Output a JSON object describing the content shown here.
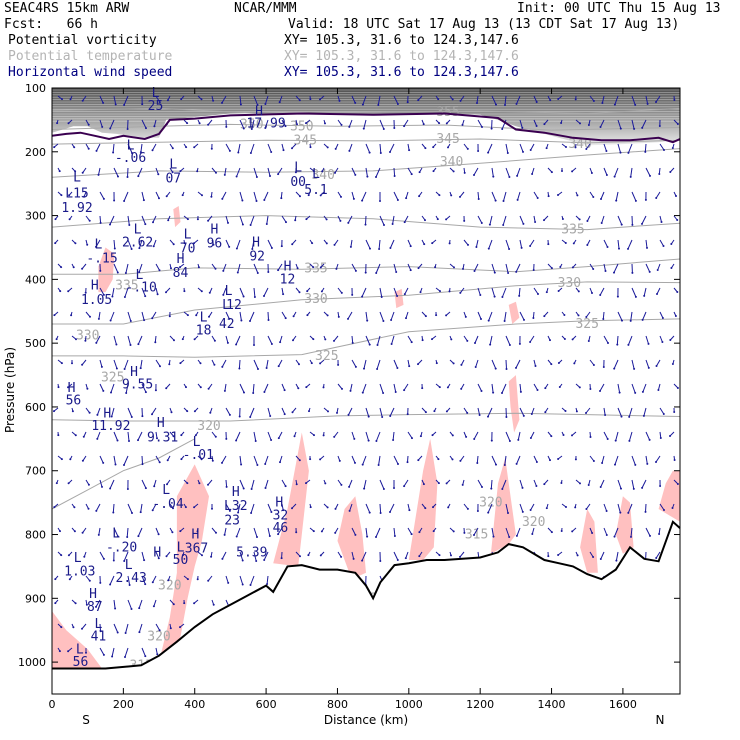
{
  "header": {
    "model": "SEAC4RS 15km ARW",
    "fcst": "Fcst:   66 h",
    "org": "NCAR/MMM",
    "init": "Init: 00 UTC Thu 15 Aug 13",
    "valid": "Valid: 18 UTC Sat 17 Aug 13 (13 CDT Sat 17 Aug 13)",
    "fields": [
      {
        "name": "Potential vorticity",
        "xy": "XY= 105.3, 31.6 to 124.3,147.6",
        "color": "#000000",
        "xycolor": "#000000"
      },
      {
        "name": "Potential temperature",
        "xy": "XY= 105.3, 31.6 to 124.3,147.6",
        "color": "#b4b4b4",
        "xycolor": "#b4b4b4"
      },
      {
        "name": "Horizontal wind speed",
        "xy": "XY= 105.3, 31.6 to 124.3,147.6",
        "color": "#000080",
        "xycolor": "#000080"
      }
    ]
  },
  "colors": {
    "pv_fill": "#ffc0c0",
    "theta": "#a8a8a8",
    "wind": "#1a1a9a",
    "pv_contour": "#3a0050",
    "terrain": "#000000"
  },
  "chart_data": {
    "type": "cross-section",
    "xlabel": "Distance (km)",
    "ylabel": "Pressure (hPa)",
    "xlim": [
      0,
      1760
    ],
    "ylim": [
      1050,
      100
    ],
    "xticks": [
      0,
      200,
      400,
      600,
      800,
      1000,
      1200,
      1400,
      1600
    ],
    "yticks": [
      100,
      200,
      300,
      400,
      500,
      600,
      700,
      800,
      900,
      1000
    ],
    "endpoints": {
      "left": "S",
      "right": "N"
    },
    "terrain": [
      [
        0,
        1010
      ],
      [
        80,
        1010
      ],
      [
        150,
        1010
      ],
      [
        250,
        1005
      ],
      [
        300,
        990
      ],
      [
        350,
        968
      ],
      [
        400,
        945
      ],
      [
        450,
        925
      ],
      [
        500,
        910
      ],
      [
        550,
        895
      ],
      [
        600,
        880
      ],
      [
        620,
        890
      ],
      [
        660,
        850
      ],
      [
        700,
        848
      ],
      [
        750,
        855
      ],
      [
        800,
        855
      ],
      [
        850,
        860
      ],
      [
        880,
        880
      ],
      [
        900,
        900
      ],
      [
        920,
        875
      ],
      [
        960,
        848
      ],
      [
        1000,
        845
      ],
      [
        1050,
        840
      ],
      [
        1100,
        840
      ],
      [
        1150,
        838
      ],
      [
        1200,
        836
      ],
      [
        1250,
        828
      ],
      [
        1280,
        815
      ],
      [
        1320,
        820
      ],
      [
        1380,
        840
      ],
      [
        1420,
        845
      ],
      [
        1460,
        850
      ],
      [
        1500,
        862
      ],
      [
        1540,
        870
      ],
      [
        1580,
        855
      ],
      [
        1620,
        820
      ],
      [
        1660,
        838
      ],
      [
        1700,
        842
      ],
      [
        1740,
        780
      ],
      [
        1760,
        790
      ]
    ],
    "theta_labels": [
      {
        "v": "355",
        "x": 1110,
        "p": 138
      },
      {
        "v": "350",
        "x": 700,
        "p": 160
      },
      {
        "v": "350",
        "x": 560,
        "p": 157
      },
      {
        "v": "345",
        "x": 710,
        "p": 182
      },
      {
        "v": "345",
        "x": 1110,
        "p": 180
      },
      {
        "v": "340",
        "x": 1480,
        "p": 188
      },
      {
        "v": "340",
        "x": 1120,
        "p": 216
      },
      {
        "v": "340",
        "x": 760,
        "p": 236
      },
      {
        "v": "335",
        "x": 1460,
        "p": 322
      },
      {
        "v": "335",
        "x": 740,
        "p": 383
      },
      {
        "v": "330",
        "x": 1450,
        "p": 406
      },
      {
        "v": "330",
        "x": 740,
        "p": 431
      },
      {
        "v": "325",
        "x": 1500,
        "p": 470
      },
      {
        "v": "325",
        "x": 770,
        "p": 520
      },
      {
        "v": "330",
        "x": 100,
        "p": 488
      },
      {
        "v": "325",
        "x": 170,
        "p": 554
      },
      {
        "v": "320",
        "x": 440,
        "p": 630
      },
      {
        "v": "335",
        "x": 210,
        "p": 410
      },
      {
        "v": "320",
        "x": 1230,
        "p": 750
      },
      {
        "v": "315",
        "x": 1310,
        "p": 860
      },
      {
        "v": "315",
        "x": 880,
        "p": 900
      },
      {
        "v": "320",
        "x": 330,
        "p": 880
      },
      {
        "v": "315",
        "x": 1190,
        "p": 800
      },
      {
        "v": "320",
        "x": 300,
        "p": 960
      },
      {
        "v": "315",
        "x": 250,
        "p": 1005
      },
      {
        "v": "320",
        "x": 1350,
        "p": 780
      }
    ],
    "theta_lines": [
      [
        [
          0,
          135
        ],
        [
          300,
          132
        ],
        [
          600,
          140
        ],
        [
          900,
          138
        ],
        [
          1200,
          136
        ],
        [
          1500,
          140
        ],
        [
          1760,
          132
        ]
      ],
      [
        [
          0,
          165
        ],
        [
          300,
          160
        ],
        [
          500,
          157
        ],
        [
          800,
          160
        ],
        [
          1100,
          158
        ],
        [
          1400,
          166
        ],
        [
          1760,
          162
        ]
      ],
      [
        [
          0,
          188
        ],
        [
          300,
          185
        ],
        [
          600,
          182
        ],
        [
          900,
          183
        ],
        [
          1200,
          180
        ],
        [
          1500,
          186
        ],
        [
          1760,
          182
        ]
      ],
      [
        [
          0,
          240
        ],
        [
          300,
          230
        ],
        [
          600,
          232
        ],
        [
          900,
          230
        ],
        [
          1200,
          218
        ],
        [
          1500,
          205
        ],
        [
          1760,
          195
        ]
      ],
      [
        [
          0,
          318
        ],
        [
          300,
          305
        ],
        [
          600,
          300
        ],
        [
          900,
          305
        ],
        [
          1200,
          318
        ],
        [
          1500,
          322
        ],
        [
          1760,
          312
        ]
      ],
      [
        [
          0,
          392
        ],
        [
          200,
          392
        ],
        [
          400,
          382
        ],
        [
          700,
          384
        ],
        [
          1000,
          380
        ],
        [
          1300,
          388
        ],
        [
          1500,
          380
        ],
        [
          1760,
          368
        ]
      ],
      [
        [
          0,
          470
        ],
        [
          200,
          470
        ],
        [
          400,
          448
        ],
        [
          700,
          432
        ],
        [
          1000,
          425
        ],
        [
          1300,
          410
        ],
        [
          1500,
          404
        ],
        [
          1760,
          405
        ]
      ],
      [
        [
          0,
          520
        ],
        [
          200,
          520
        ],
        [
          400,
          522
        ],
        [
          700,
          518
        ],
        [
          1000,
          482
        ],
        [
          1300,
          470
        ],
        [
          1500,
          465
        ],
        [
          1760,
          462
        ]
      ],
      [
        [
          0,
          620
        ],
        [
          200,
          622
        ],
        [
          500,
          622
        ],
        [
          800,
          614
        ],
        [
          1000,
          612
        ],
        [
          1300,
          610
        ],
        [
          1500,
          612
        ],
        [
          1760,
          615
        ]
      ],
      [
        [
          0,
          760
        ],
        [
          100,
          730
        ],
        [
          200,
          700
        ],
        [
          300,
          680
        ],
        [
          400,
          650
        ]
      ]
    ],
    "pv_annotations": [
      {
        "t": "L",
        "x": 290,
        "p": 108
      },
      {
        "t": "25",
        "x": 290,
        "p": 128
      },
      {
        "t": "L",
        "x": 220,
        "p": 190
      },
      {
        "t": "-.06",
        "x": 220,
        "p": 210
      },
      {
        "t": "L",
        "x": 340,
        "p": 220
      },
      {
        "t": "07",
        "x": 340,
        "p": 242
      },
      {
        "t": "H",
        "x": 580,
        "p": 137
      },
      {
        "t": "17.99",
        "x": 600,
        "p": 156
      },
      {
        "t": "L",
        "x": 70,
        "p": 240
      },
      {
        "t": "L15",
        "x": 70,
        "p": 265
      },
      {
        "t": "1.92",
        "x": 70,
        "p": 288
      },
      {
        "t": "L",
        "x": 690,
        "p": 225
      },
      {
        "t": "00",
        "x": 690,
        "p": 247
      },
      {
        "t": "L",
        "x": 740,
        "p": 235
      },
      {
        "t": "5.1",
        "x": 740,
        "p": 260
      },
      {
        "t": "L",
        "x": 240,
        "p": 322
      },
      {
        "t": "2.62",
        "x": 240,
        "p": 342
      },
      {
        "t": "L",
        "x": 380,
        "p": 330
      },
      {
        "t": "70",
        "x": 380,
        "p": 352
      },
      {
        "t": "H",
        "x": 455,
        "p": 322
      },
      {
        "t": "96",
        "x": 455,
        "p": 344
      },
      {
        "t": "H",
        "x": 572,
        "p": 342
      },
      {
        "t": "92",
        "x": 575,
        "p": 364
      },
      {
        "t": "L",
        "x": 130,
        "p": 345
      },
      {
        "t": "-.15",
        "x": 140,
        "p": 367
      },
      {
        "t": "H",
        "x": 360,
        "p": 368
      },
      {
        "t": "84",
        "x": 360,
        "p": 390
      },
      {
        "t": "L",
        "x": 245,
        "p": 393
      },
      {
        "t": "-.10",
        "x": 250,
        "p": 413
      },
      {
        "t": "H",
        "x": 660,
        "p": 380
      },
      {
        "t": "12",
        "x": 660,
        "p": 400
      },
      {
        "t": "H",
        "x": 120,
        "p": 410
      },
      {
        "t": "1.05",
        "x": 125,
        "p": 432
      },
      {
        "t": "L",
        "x": 495,
        "p": 418
      },
      {
        "t": "L",
        "x": 488,
        "p": 440
      },
      {
        "t": "12",
        "x": 510,
        "p": 440
      },
      {
        "t": "L",
        "x": 425,
        "p": 460
      },
      {
        "t": "18",
        "x": 425,
        "p": 480
      },
      {
        "t": "42",
        "x": 490,
        "p": 470
      },
      {
        "t": "H",
        "x": 230,
        "p": 545
      },
      {
        "t": "9.55",
        "x": 240,
        "p": 565
      },
      {
        "t": "H",
        "x": 55,
        "p": 570
      },
      {
        "t": "56",
        "x": 60,
        "p": 590
      },
      {
        "t": "H",
        "x": 155,
        "p": 610
      },
      {
        "t": "11.92",
        "x": 165,
        "p": 630
      },
      {
        "t": "H",
        "x": 305,
        "p": 625
      },
      {
        "t": "9.31",
        "x": 310,
        "p": 648
      },
      {
        "t": "L",
        "x": 405,
        "p": 655
      },
      {
        "t": "-.01",
        "x": 410,
        "p": 675
      },
      {
        "t": "L",
        "x": 320,
        "p": 730
      },
      {
        "t": "-.04",
        "x": 325,
        "p": 752
      },
      {
        "t": "H",
        "x": 515,
        "p": 733
      },
      {
        "t": "L32",
        "x": 515,
        "p": 755
      },
      {
        "t": "23",
        "x": 505,
        "p": 778
      },
      {
        "t": "H",
        "x": 637,
        "p": 750
      },
      {
        "t": "32",
        "x": 640,
        "p": 770
      },
      {
        "t": "46",
        "x": 640,
        "p": 790
      },
      {
        "t": "L",
        "x": 180,
        "p": 798
      },
      {
        "t": "-.20",
        "x": 195,
        "p": 820
      },
      {
        "t": "H",
        "x": 402,
        "p": 800
      },
      {
        "t": "367",
        "x": 405,
        "p": 822
      },
      {
        "t": "L",
        "x": 360,
        "p": 820
      },
      {
        "t": "50",
        "x": 360,
        "p": 840
      },
      {
        "t": "H",
        "x": 295,
        "p": 828
      },
      {
        "t": "5.39",
        "x": 560,
        "p": 828
      },
      {
        "t": "L",
        "x": 72,
        "p": 837
      },
      {
        "t": "1.03",
        "x": 78,
        "p": 858
      },
      {
        "t": "L",
        "x": 215,
        "p": 848
      },
      {
        "t": "2.43",
        "x": 222,
        "p": 868
      },
      {
        "t": "H",
        "x": 115,
        "p": 893
      },
      {
        "t": "87",
        "x": 120,
        "p": 914
      },
      {
        "t": "L",
        "x": 130,
        "p": 940
      },
      {
        "t": "41",
        "x": 130,
        "p": 960
      },
      {
        "t": "L",
        "x": 78,
        "p": 980
      },
      {
        "t": "56",
        "x": 80,
        "p": 1000
      }
    ]
  }
}
